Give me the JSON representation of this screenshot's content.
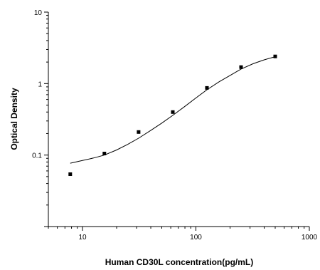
{
  "chart_data": {
    "type": "scatter",
    "title": "",
    "xlabel": "Human CD30L concentration(pg/mL)",
    "ylabel": "Optical Density",
    "x_scale": "log",
    "y_scale": "log",
    "xlim": [
      5,
      1000
    ],
    "ylim": [
      0.01,
      10
    ],
    "grid": false,
    "legend": "none",
    "x_ticks": [
      10,
      100,
      1000
    ],
    "x_tick_labels": [
      "10",
      "100",
      "1000"
    ],
    "y_ticks": [
      0.1,
      1,
      10
    ],
    "y_tick_labels": [
      "0.1",
      "1",
      "10"
    ],
    "series": [
      {
        "type": "scatter",
        "marker": "square",
        "color": "#000000",
        "x": [
          7.8,
          15.6,
          31.25,
          62.5,
          125,
          250,
          500
        ],
        "y": [
          0.054,
          0.105,
          0.21,
          0.4,
          0.87,
          1.7,
          2.4
        ]
      },
      {
        "type": "line",
        "color": "#000000",
        "x": [
          7.8,
          10,
          12.5,
          15.6,
          20,
          25,
          31.25,
          40,
          50,
          62.5,
          80,
          100,
          125,
          160,
          200,
          250,
          320,
          400,
          500
        ],
        "y": [
          0.077,
          0.084,
          0.091,
          0.1,
          0.118,
          0.141,
          0.172,
          0.221,
          0.28,
          0.36,
          0.48,
          0.63,
          0.82,
          1.06,
          1.3,
          1.6,
          1.9,
          2.15,
          2.38
        ]
      }
    ]
  }
}
